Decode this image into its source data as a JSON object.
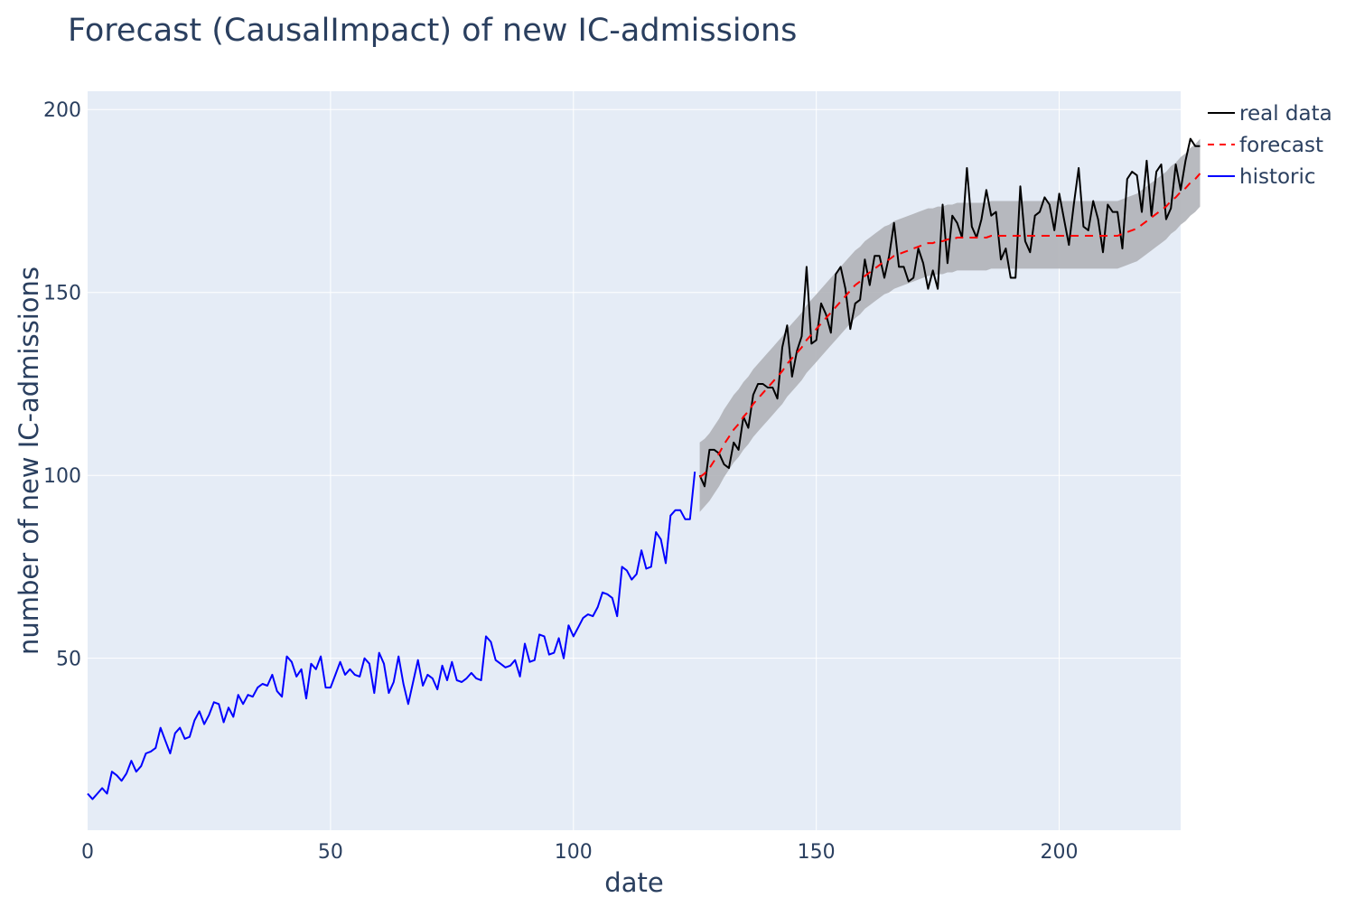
{
  "chart_data": {
    "type": "line",
    "title": "Forecast (CausalImpact) of new IC-admissions",
    "xlabel": "date",
    "ylabel": "number of new IC-admissions",
    "xlim": [
      0,
      225
    ],
    "ylim": [
      3,
      205
    ],
    "x_ticks": [
      0,
      50,
      100,
      150,
      200
    ],
    "y_ticks": [
      50,
      100,
      150,
      200
    ],
    "grid": true,
    "legend_position": "top-right",
    "colors": {
      "plot_bg": "#e5ecf6",
      "grid": "#ffffff",
      "real": "#000000",
      "forecast": "#ff0000",
      "historic": "#0000ff",
      "band": "#b0b3b8"
    },
    "legend": [
      {
        "name": "real data",
        "style": "solid",
        "color": "#000000"
      },
      {
        "name": "forecast",
        "style": "dash",
        "color": "#ff0000"
      },
      {
        "name": "historic",
        "style": "solid",
        "color": "#0000ff"
      }
    ],
    "series": [
      {
        "name": "historic",
        "color": "#0000ff",
        "x0": 0,
        "values": [
          13,
          11.5,
          13,
          14.5,
          13,
          19,
          18,
          16.5,
          18.5,
          22,
          19,
          20.5,
          24,
          24.5,
          25.5,
          31,
          27.5,
          24,
          29.5,
          31,
          28,
          28.5,
          33,
          35.5,
          32,
          34.5,
          38,
          37.5,
          32.5,
          36.5,
          34,
          40,
          37.5,
          40,
          39.5,
          42,
          43,
          42.5,
          45.5,
          41,
          39.5,
          50.5,
          49,
          45,
          47,
          39,
          48.5,
          47,
          50.5,
          42,
          42,
          45.5,
          49,
          45.5,
          47,
          45.5,
          45,
          50,
          48.5,
          40.5,
          51.5,
          48.5,
          40.5,
          43.5,
          50.5,
          43,
          37.5,
          43.5,
          49.5,
          42.5,
          45.5,
          44.5,
          41.5,
          48,
          44,
          49,
          44,
          43.5,
          44.5,
          46,
          44.5,
          44,
          56,
          54.5,
          49.5,
          48.5,
          47.5,
          48,
          49.5,
          45,
          54,
          49,
          49.5,
          56.5,
          56,
          51,
          51.5,
          55.5,
          50,
          59,
          56,
          58.5,
          61,
          62,
          61.5,
          64,
          68,
          67.5,
          66.5,
          61.5,
          75,
          74,
          71.5,
          73,
          79.5,
          74.5,
          75,
          84.5,
          82.5,
          76,
          89,
          90.5,
          90.5,
          88,
          88,
          101
        ]
      },
      {
        "name": "real data",
        "color": "#000000",
        "x0": 126,
        "values": [
          100,
          97,
          107,
          107,
          106,
          103,
          102,
          109,
          107,
          116,
          113,
          122,
          125,
          125,
          124,
          124,
          121,
          135,
          141,
          127,
          134,
          138,
          157,
          136,
          137,
          147,
          144,
          139,
          155,
          157,
          151,
          140,
          147,
          148,
          159,
          152,
          160,
          160,
          154,
          160,
          169,
          157,
          157,
          153,
          154,
          162,
          158,
          151,
          156,
          151,
          174,
          158,
          171,
          169,
          165,
          184,
          168,
          165,
          170,
          178,
          171,
          172,
          159,
          162,
          154,
          154,
          179,
          164,
          161,
          171,
          172,
          176,
          174,
          167,
          177,
          170,
          163,
          174,
          184,
          168,
          167,
          175,
          170,
          161,
          174,
          172,
          172,
          162,
          181,
          183,
          182,
          172,
          186,
          171,
          183,
          185,
          170,
          173,
          185,
          178,
          186,
          192,
          190,
          190
        ]
      },
      {
        "name": "forecast",
        "color": "#ff0000",
        "x0": 126,
        "values": [
          99.5,
          100.5,
          102,
          104,
          106,
          108.5,
          110.5,
          112.5,
          114,
          116,
          117.5,
          119.5,
          121,
          122.5,
          124,
          125.5,
          127,
          128.5,
          130.5,
          132,
          133.5,
          135,
          137,
          138.5,
          140,
          141.5,
          143,
          144.5,
          146,
          147.5,
          149,
          150.5,
          152,
          153,
          154.5,
          155.5,
          156.5,
          157.5,
          158.5,
          159,
          160,
          160.5,
          161,
          161.5,
          162,
          162.5,
          163,
          163.5,
          163.5,
          164,
          164,
          164.5,
          164.5,
          165,
          165,
          165,
          165,
          165,
          165,
          165,
          165.5,
          165.5,
          165.5,
          165.5,
          165.5,
          165.5,
          165.5,
          165.5,
          165.5,
          165.5,
          165.5,
          165.5,
          165.5,
          165.5,
          165.5,
          165.5,
          165.5,
          165.5,
          165.5,
          165.5,
          165.5,
          165.5,
          165.5,
          165.5,
          165.5,
          165.5,
          165.5,
          166,
          166.5,
          167,
          167.5,
          168.5,
          169.5,
          170.5,
          171.5,
          172.5,
          173.5,
          175,
          176,
          177.5,
          178.5,
          180,
          181,
          182.5
        ]
      }
    ],
    "band": {
      "name": "forecast interval",
      "x0": 126,
      "lower": [
        90,
        91.5,
        93,
        95,
        97,
        99.5,
        101.5,
        103.5,
        105,
        107,
        108.5,
        110.5,
        112,
        113.5,
        115,
        116.5,
        118,
        119.5,
        121.5,
        123,
        124.5,
        126,
        128,
        129.5,
        131,
        132.5,
        134,
        135.5,
        137,
        138.5,
        140,
        141.5,
        143,
        144,
        145.5,
        146.5,
        147.5,
        148.5,
        149.5,
        150,
        151,
        151.5,
        152,
        152.5,
        153,
        153.5,
        154,
        154.5,
        154.5,
        155,
        155,
        155.5,
        155.5,
        156,
        156,
        156,
        156,
        156,
        156,
        156,
        156.5,
        156.5,
        156.5,
        156.5,
        156.5,
        156.5,
        156.5,
        156.5,
        156.5,
        156.5,
        156.5,
        156.5,
        156.5,
        156.5,
        156.5,
        156.5,
        156.5,
        156.5,
        156.5,
        156.5,
        156.5,
        156.5,
        156.5,
        156.5,
        156.5,
        156.5,
        156.5,
        157,
        157.5,
        158,
        158.5,
        159.5,
        160.5,
        161.5,
        162.5,
        163.5,
        164.5,
        166,
        167,
        168.5,
        169.5,
        171,
        172,
        173.5
      ],
      "upper": [
        109,
        110,
        111.5,
        113.5,
        115.5,
        118,
        120,
        122,
        123.5,
        125.5,
        127,
        129,
        130.5,
        132,
        133.5,
        135,
        136.5,
        138,
        140,
        141.5,
        143,
        144.5,
        146.5,
        148,
        149.5,
        151,
        152.5,
        154,
        155.5,
        157,
        158.5,
        160,
        161.5,
        162.5,
        164,
        165,
        166,
        167,
        168,
        168.5,
        169.5,
        170,
        170.5,
        171,
        171.5,
        172,
        172.5,
        173,
        173,
        173.5,
        173.5,
        174,
        174,
        174.5,
        174.5,
        174.5,
        174.5,
        174.5,
        174.5,
        174.5,
        175,
        175,
        175,
        175,
        175,
        175,
        175,
        175,
        175,
        175,
        175,
        175,
        175,
        175,
        175,
        175,
        175,
        175,
        175,
        175,
        175,
        175,
        175,
        175,
        175,
        175,
        175,
        175.5,
        176,
        176.5,
        177,
        178,
        179,
        180,
        181,
        182,
        183,
        184.5,
        185.5,
        187,
        188,
        189.5,
        190.5,
        192
      ]
    }
  }
}
